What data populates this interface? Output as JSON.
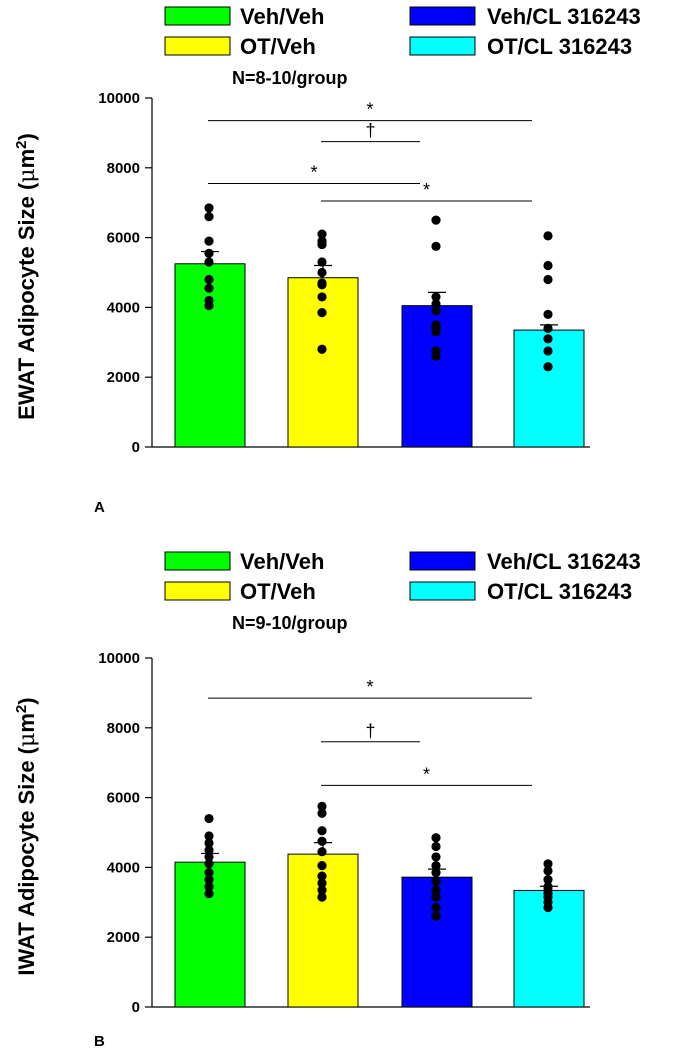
{
  "colors": {
    "Veh/Veh": "#00ff00",
    "OT/Veh": "#ffff00",
    "Veh/CL 316243": "#0000ff",
    "OT/CL 316243": "#00ffff"
  },
  "chart_data": [
    {
      "type": "bar",
      "panel_label": "A",
      "ylabel_main": "EWAT Adipocyte Size (",
      "ylabel_unit_mu": "μ",
      "ylabel_unit_m": "m",
      "ylabel_sup": "2",
      "ylabel_close": ")",
      "n_label": "N=8-10/group",
      "legend": [
        "Veh/Veh",
        "Veh/CL 316243",
        "OT/Veh",
        "OT/CL 316243"
      ],
      "categories": [
        "Veh/Veh",
        "OT/Veh",
        "Veh/CL 316243",
        "OT/CL 316243"
      ],
      "values": [
        5250,
        4850,
        4050,
        3350
      ],
      "sem": [
        350,
        350,
        380,
        150
      ],
      "points": [
        [
          6850,
          6600,
          5900,
          5550,
          5300,
          4800,
          4550,
          4200,
          4050
        ],
        [
          6100,
          5900,
          5800,
          5300,
          5000,
          4700,
          4650,
          4300,
          3850,
          2800
        ],
        [
          6500,
          5750,
          4300,
          4100,
          3900,
          3500,
          3400,
          3300,
          2750,
          2600
        ],
        [
          6050,
          5200,
          4800,
          3800,
          3400,
          3100,
          2750,
          2300
        ]
      ],
      "ylim": [
        0,
        10000
      ],
      "yticks": [
        "0",
        "2000",
        "4000",
        "6000",
        "8000",
        "10000"
      ],
      "ytick_values": [
        0,
        2000,
        4000,
        6000,
        8000,
        10000
      ],
      "significance": [
        {
          "from": 0,
          "to": 3,
          "y": 9350,
          "label": "*"
        },
        {
          "from": 1,
          "to": 2,
          "y": 8750,
          "label": "†"
        },
        {
          "from": 0,
          "to": 2,
          "y": 7550,
          "label": "*"
        },
        {
          "from": 1,
          "to": 3,
          "y": 7050,
          "label": "*"
        }
      ]
    },
    {
      "type": "bar",
      "panel_label": "B",
      "ylabel_main": "IWAT Adipocyte Size (",
      "ylabel_unit_mu": "μ",
      "ylabel_unit_m": "m",
      "ylabel_sup": "2",
      "ylabel_close": ")",
      "n_label": "N=9-10/group",
      "legend": [
        "Veh/Veh",
        "Veh/CL 316243",
        "OT/Veh",
        "OT/CL 316243"
      ],
      "categories": [
        "Veh/Veh",
        "OT/Veh",
        "Veh/CL 316243",
        "OT/CL 316243"
      ],
      "values": [
        4150,
        4380,
        3720,
        3340
      ],
      "sem": [
        250,
        330,
        230,
        120
      ],
      "points": [
        [
          5400,
          4900,
          4700,
          4500,
          4300,
          4100,
          3850,
          3650,
          3450,
          3250
        ],
        [
          5750,
          5550,
          5050,
          4750,
          4450,
          4050,
          3750,
          3550,
          3350,
          3150
        ],
        [
          4850,
          4600,
          4300,
          4050,
          3850,
          3600,
          3350,
          3150,
          2850,
          2600
        ],
        [
          4100,
          3900,
          3650,
          3450,
          3350,
          3250,
          3150,
          3000,
          2850
        ]
      ],
      "ylim": [
        0,
        10000
      ],
      "yticks": [
        "0",
        "2000",
        "4000",
        "6000",
        "8000",
        "10000"
      ],
      "ytick_values": [
        0,
        2000,
        4000,
        6000,
        8000,
        10000
      ],
      "significance": [
        {
          "from": 0,
          "to": 3,
          "y": 8850,
          "label": "*"
        },
        {
          "from": 1,
          "to": 2,
          "y": 7600,
          "label": "†"
        },
        {
          "from": 1,
          "to": 3,
          "y": 6350,
          "label": "*"
        }
      ]
    }
  ]
}
